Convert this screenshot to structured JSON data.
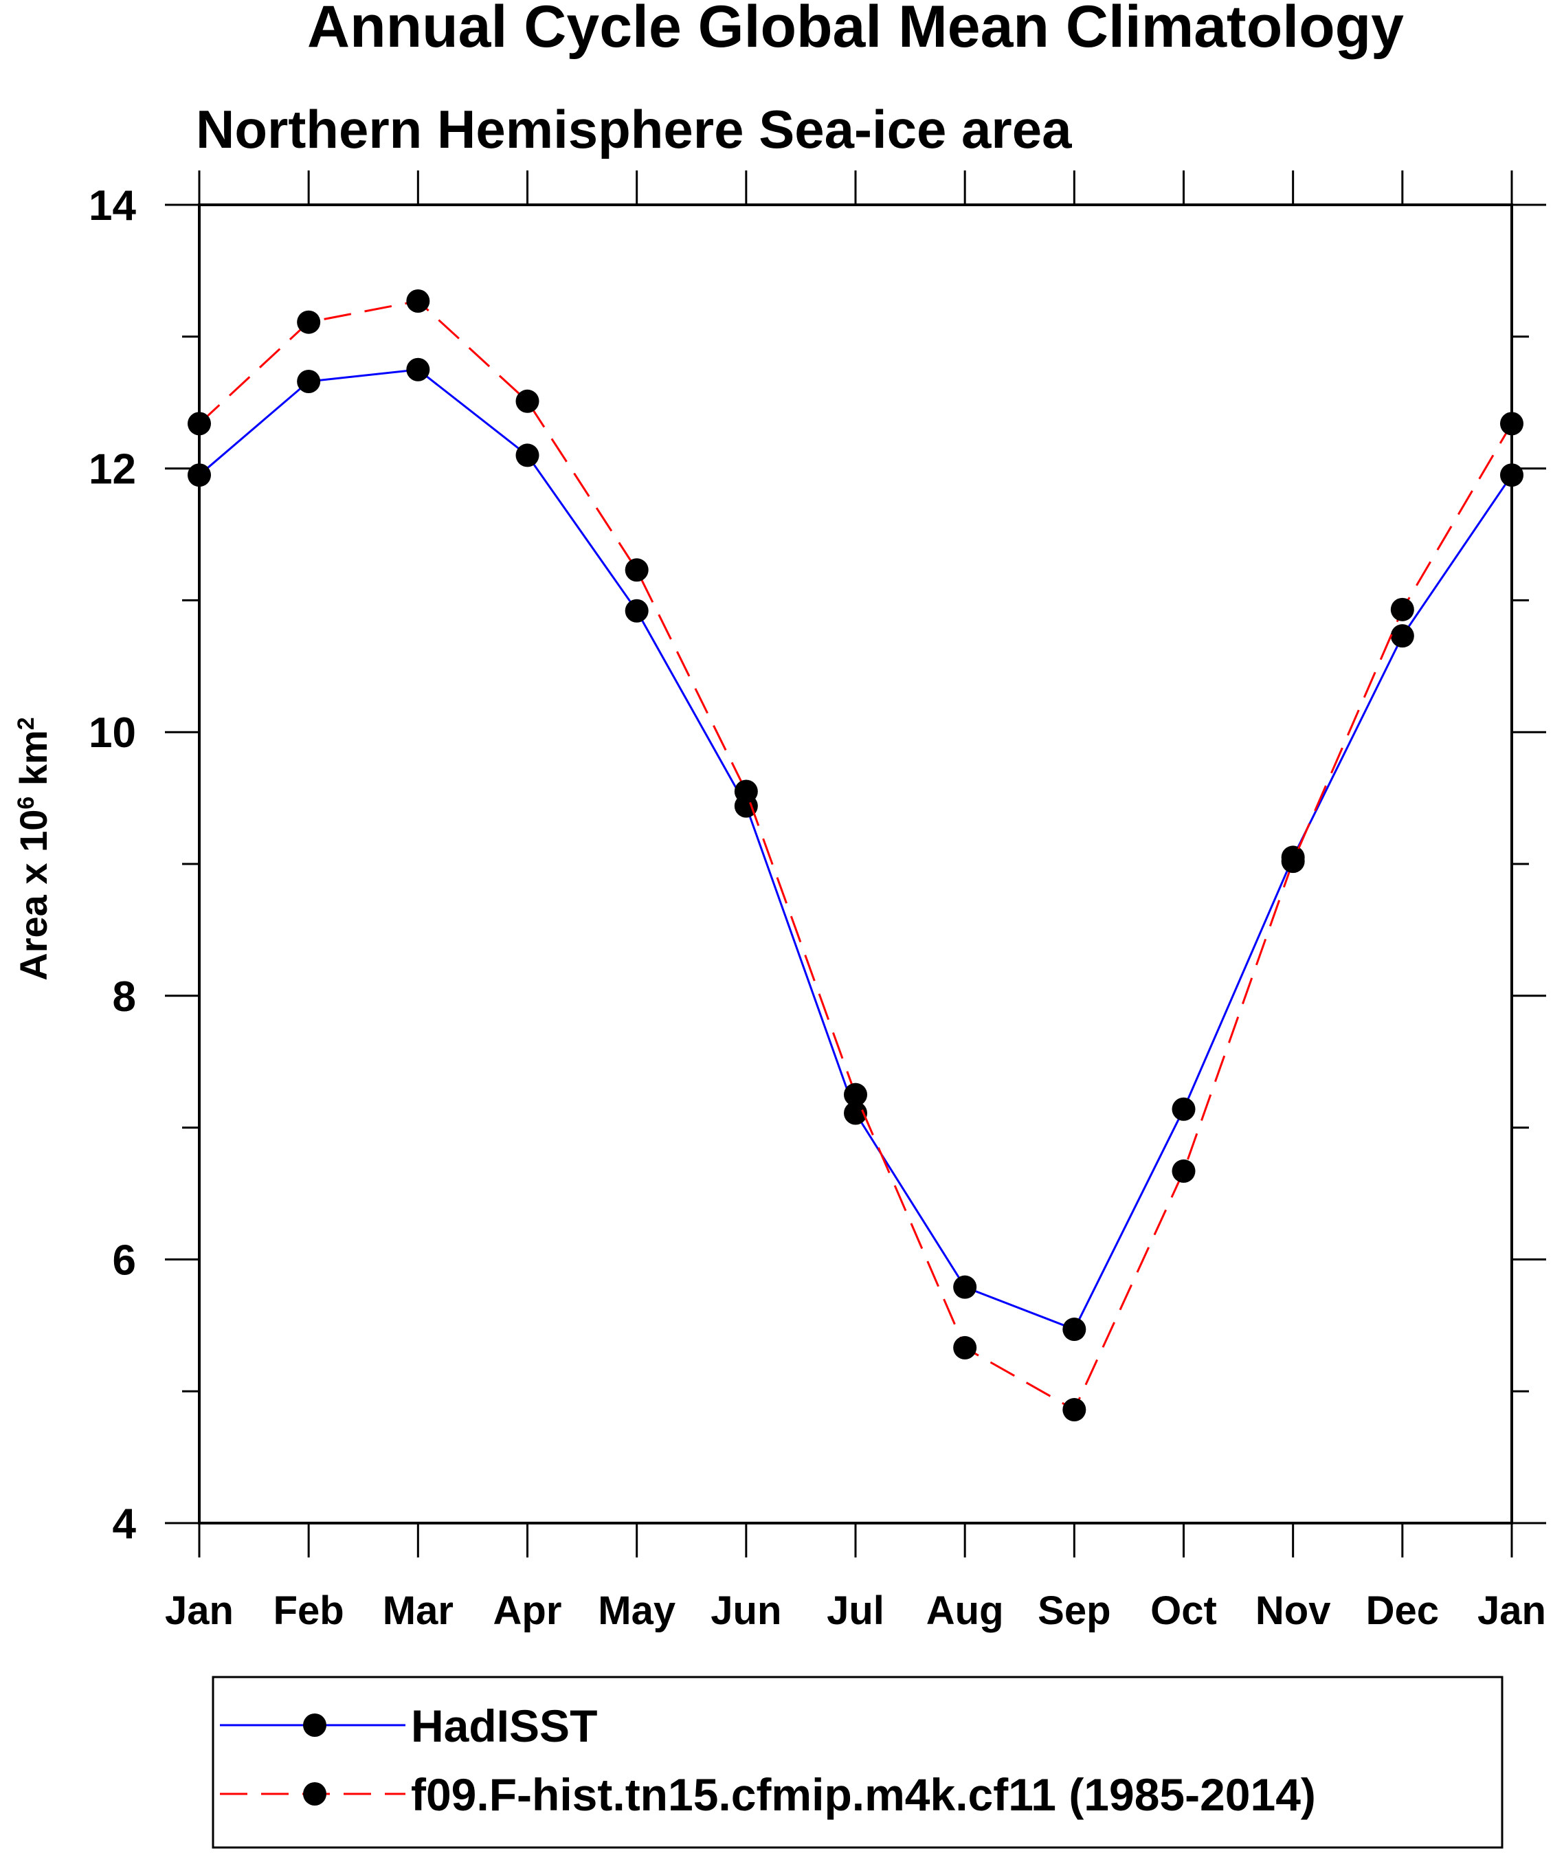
{
  "chart_data": {
    "type": "line",
    "title": "Annual Cycle Global Mean Climatology",
    "subtitle": "Northern Hemisphere Sea-ice area",
    "ylabel_main": "Area x 10",
    "ylabel_exp": "6",
    "ylabel_unit": " km",
    "ylabel_unit_exp": "2",
    "ylim": [
      4,
      14
    ],
    "yticks": [
      4,
      6,
      8,
      10,
      12,
      14
    ],
    "ytick_labels": [
      "4",
      "6",
      "8",
      "10",
      "12",
      "14"
    ],
    "categories": [
      "Jan",
      "Feb",
      "Mar",
      "Apr",
      "May",
      "Jun",
      "Jul",
      "Aug",
      "Sep",
      "Oct",
      "Nov",
      "Dec",
      "Jan"
    ],
    "series": [
      {
        "name": "HadISST",
        "color": "#0000ff",
        "dash": "solid",
        "values": [
          11.95,
          12.66,
          12.75,
          12.1,
          10.92,
          9.44,
          7.11,
          5.79,
          5.47,
          7.14,
          9.05,
          10.73,
          11.95
        ]
      },
      {
        "name": "f09.F-hist.tn15.cfmip.m4k.cf11 (1985-2014)",
        "color": "#ff0000",
        "dash": "dashed",
        "values": [
          12.34,
          13.11,
          13.27,
          12.51,
          11.23,
          9.55,
          7.25,
          5.33,
          4.86,
          6.67,
          9.02,
          10.93,
          12.34
        ]
      }
    ],
    "legend": {
      "placement": "bottom",
      "marker_color": "#000000"
    }
  }
}
